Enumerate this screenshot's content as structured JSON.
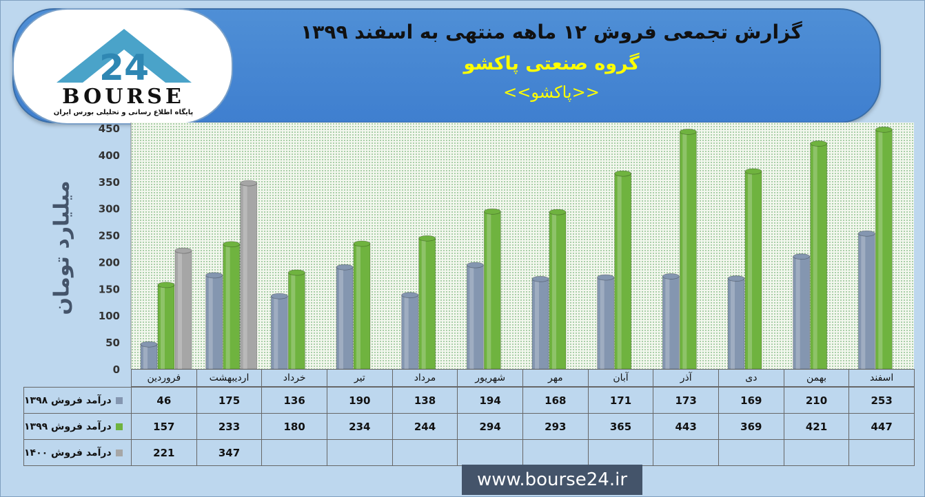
{
  "header": {
    "title": "گزارش تجمعی فروش ۱۲ ماهه منتهی به اسفند ۱۳۹۹",
    "subtitle": "گروه صنعتی پاکشو",
    "company": "<<پاکشو>>"
  },
  "logo": {
    "word": "BOURSE",
    "number": "24",
    "tagline": "پایگاه اطلاع رسانی و تحلیلی بورس ایران"
  },
  "website": "www.bourse24.ir",
  "colors": {
    "series1398": "#8496b0",
    "series1399": "#6fb33f",
    "series1400": "#a6a6a6",
    "banner": "#4f8fd6",
    "title_yellow": "#ffff00"
  },
  "chart_data": {
    "type": "bar",
    "ylabel": "میلیارد تومان",
    "ylim": [
      0,
      450
    ],
    "yticks": [
      0,
      50,
      100,
      150,
      200,
      250,
      300,
      350,
      400,
      450
    ],
    "grid": false,
    "legend": "data-table",
    "categories": [
      "فروردین",
      "اردیبهشت",
      "خرداد",
      "تیر",
      "مرداد",
      "شهریور",
      "مهر",
      "آبان",
      "آذر",
      "دی",
      "بهمن",
      "اسفند"
    ],
    "series": [
      {
        "name": "درآمد فروش ۱۳۹۸",
        "color": "#8496b0",
        "values": [
          46,
          175,
          136,
          190,
          138,
          194,
          168,
          171,
          173,
          169,
          210,
          253
        ]
      },
      {
        "name": "درآمد فروش ۱۳۹۹",
        "color": "#6fb33f",
        "values": [
          157,
          233,
          180,
          234,
          244,
          294,
          293,
          365,
          443,
          369,
          421,
          447
        ]
      },
      {
        "name": "درآمد فروش ۱۴۰۰",
        "color": "#a6a6a6",
        "values": [
          221,
          347,
          null,
          null,
          null,
          null,
          null,
          null,
          null,
          null,
          null,
          null
        ]
      }
    ]
  }
}
